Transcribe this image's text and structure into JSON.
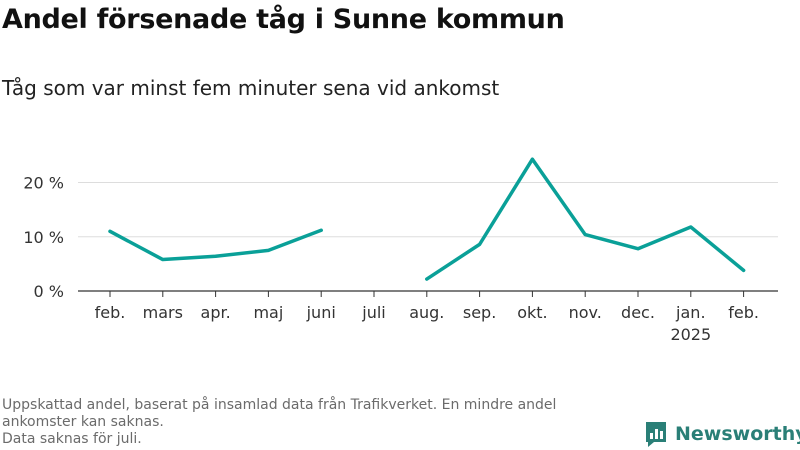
{
  "header": {
    "title": "Andel försenade tåg i Sunne kommun",
    "subtitle": "Tåg som var minst fem minuter sena vid ankomst"
  },
  "chart_data": {
    "type": "line",
    "title": "Andel försenade tåg i Sunne kommun",
    "subtitle": "Tåg som var minst fem minuter sena vid ankomst",
    "categories": [
      "feb.",
      "mars",
      "apr.",
      "maj",
      "juni",
      "juli",
      "aug.",
      "sep.",
      "okt.",
      "nov.",
      "dec.",
      "jan.",
      "feb."
    ],
    "category_sublabels": [
      "",
      "",
      "",
      "",
      "",
      "",
      "",
      "",
      "",
      "",
      "",
      "2025",
      ""
    ],
    "series": [
      {
        "name": "Andel försenade tåg",
        "values": [
          11,
          5.8,
          6.4,
          7.5,
          11.2,
          null,
          2.2,
          8.6,
          24.3,
          10.4,
          7.8,
          11.8,
          3.8
        ]
      }
    ],
    "y_ticks": [
      0,
      10,
      20
    ],
    "y_tick_labels": [
      "0 %",
      "10 %",
      "20 %"
    ],
    "ylim": [
      0,
      26
    ],
    "xlabel": "",
    "ylabel": "",
    "grid": true,
    "line_color": "#0aa098",
    "legend": "none"
  },
  "footer": {
    "source_lines": [
      "Uppskattad andel, baserat på insamlad data från Trafikverket. En mindre andel ankomster kan saknas.",
      "Data saknas för juli."
    ],
    "brand": "Newsworthy",
    "brand_color": "#2a7f77"
  }
}
